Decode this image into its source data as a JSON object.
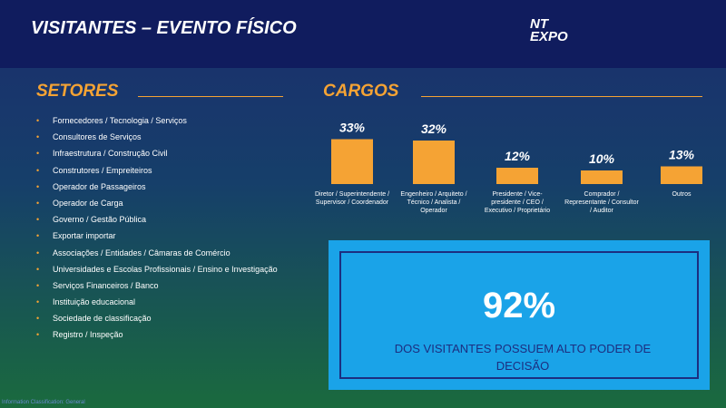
{
  "header": {
    "title": "VISITANTES – EVENTO FÍSICO",
    "logo": [
      "NT",
      "EXPO"
    ]
  },
  "setores": {
    "title": "SETORES",
    "items": [
      "Fornecedores / Tecnologia / Serviços",
      "Consultores de Serviços",
      "Infraestrutura / Construção Civil",
      "Construtores / Empreiteiros",
      "Operador de Passageiros",
      "Operador de Carga",
      "Governo / Gestão Pública",
      "Exportar importar",
      "Associações / Entidades / Câmaras de Comércio",
      "Universidades e Escolas Profissionais / Ensino e Investigação",
      "Serviços Financeiros / Banco",
      "Instituição educacional",
      "Sociedade de classificação",
      "Registro / Inspeção"
    ]
  },
  "chart_data": {
    "type": "bar",
    "title": "CARGOS",
    "categories": [
      "Diretor / Superintendente / Supervisor / Coordenador",
      "Engenheiro / Arquiteto / Técnico / Analista / Operador",
      "Presidente / Vice-presidente / CEO / Executivo / Proprietário",
      "Comprador / Representante / Consultor / Auditor",
      "Outros"
    ],
    "values": [
      33,
      32,
      12,
      10,
      13
    ],
    "value_labels": [
      "33%",
      "32%",
      "12%",
      "10%",
      "13%"
    ],
    "color": "#f5a334"
  },
  "highlight": {
    "value": "92%",
    "text": "DOS VISITANTES POSSUEM ALTO PODER DE DECISÃO"
  },
  "footer": "Information Classification: General"
}
